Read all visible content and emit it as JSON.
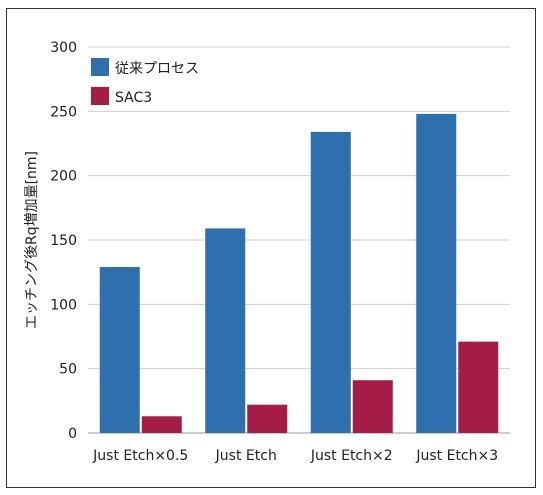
{
  "chart_data": {
    "type": "bar",
    "title": "",
    "xlabel": "",
    "ylabel": "エッチング後Rq増加量[nm]",
    "categories": [
      "Just Etch×0.5",
      "Just Etch",
      "Just Etch×2",
      "Just Etch×3"
    ],
    "series": [
      {
        "name": "従来プロセス",
        "color": "#2e6fad",
        "values": [
          129,
          159,
          234,
          248
        ]
      },
      {
        "name": "SAC3",
        "color": "#a51c45",
        "values": [
          13,
          22,
          41,
          71
        ]
      }
    ],
    "ylim": [
      0,
      300
    ],
    "yticks": [
      0,
      50,
      100,
      150,
      200,
      250,
      300
    ],
    "grid": true,
    "legend_position": "top-left"
  }
}
